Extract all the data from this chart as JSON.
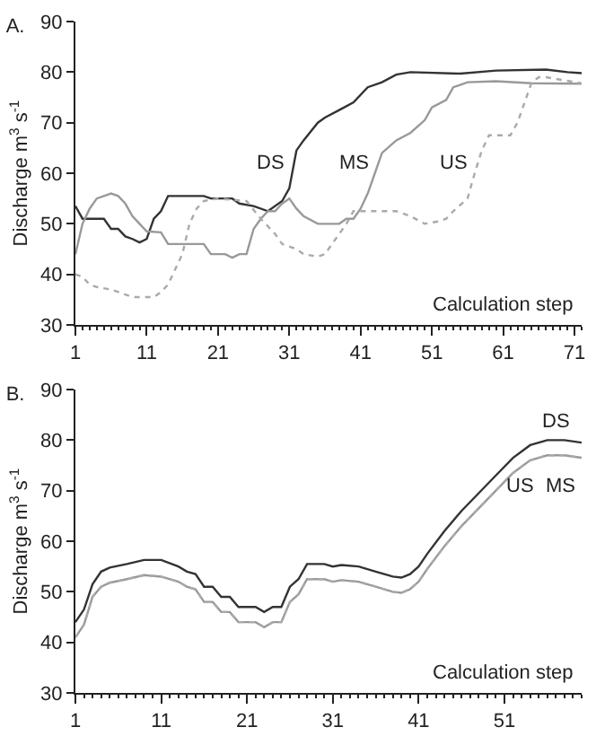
{
  "chart_data": [
    {
      "type": "line",
      "title": "A.",
      "xlabel": "Calculation step",
      "ylabel": "Discharge m$^{3}$ s$^{-1}$",
      "xlim": [
        1,
        72
      ],
      "xticks": [
        1,
        11,
        21,
        31,
        41,
        51,
        61,
        71
      ],
      "ylim": [
        30,
        90
      ],
      "yticks": [
        30,
        40,
        50,
        60,
        70,
        80,
        90
      ],
      "grid": false,
      "legend": false,
      "marker": "none",
      "series": [
        {
          "name": "DS",
          "color": "#333333",
          "line_style": "solid",
          "x": [
            1,
            2,
            5,
            6,
            7,
            8,
            9,
            10,
            11,
            12,
            13,
            14,
            19,
            20,
            23,
            24,
            26,
            28,
            30,
            31,
            32,
            33,
            35,
            36,
            38,
            40,
            42,
            44,
            46,
            48,
            55,
            60,
            67,
            70,
            72
          ],
          "values": [
            53.5,
            51,
            51,
            49,
            49,
            47.5,
            47,
            46.3,
            47,
            51,
            52.5,
            55.5,
            55.5,
            55,
            55,
            54,
            53.5,
            52.5,
            54.5,
            57,
            64.5,
            66.5,
            70,
            71,
            72.5,
            74,
            77,
            78,
            79.5,
            80,
            79.7,
            80.3,
            80.5,
            80,
            79.8
          ]
        },
        {
          "name": "MS",
          "color": "#999999",
          "line_style": "solid",
          "x": [
            1,
            2,
            3,
            4,
            6,
            7,
            8,
            9,
            10,
            11,
            13,
            14,
            19,
            20,
            22,
            23,
            24,
            25,
            26,
            27,
            28,
            29,
            30,
            31,
            32,
            33,
            35,
            38,
            39,
            40,
            41,
            42,
            43,
            44,
            46,
            48,
            50,
            51,
            53,
            54,
            56,
            60,
            65,
            72
          ],
          "values": [
            44,
            50,
            53,
            55,
            56,
            55.5,
            54,
            51.5,
            50,
            48.5,
            48.3,
            46,
            46,
            44,
            44,
            43.3,
            44,
            44,
            49,
            51,
            52.5,
            52.5,
            54,
            55,
            53,
            51.5,
            50,
            50,
            51,
            51,
            53,
            56,
            60,
            64,
            66.5,
            68,
            70.5,
            73,
            74.5,
            77,
            78,
            78.2,
            77.8,
            77.7
          ]
        },
        {
          "name": "US",
          "color": "#aaaaaa",
          "line_style": "dotted",
          "x": [
            1,
            2,
            3,
            4,
            6,
            8,
            9,
            12,
            13,
            14,
            16,
            17,
            18,
            19,
            21,
            25,
            27,
            29,
            30,
            32,
            33,
            35,
            36,
            38,
            39,
            40,
            46,
            48,
            50,
            52,
            53,
            54,
            56,
            57,
            58,
            59,
            62,
            63,
            64,
            65,
            66,
            67,
            69,
            72
          ],
          "values": [
            40,
            39.5,
            38,
            37.5,
            37,
            36,
            35.5,
            35.5,
            36.5,
            38,
            44,
            50,
            53,
            54.5,
            55,
            54.5,
            51,
            48,
            46,
            45,
            44,
            43.5,
            44,
            48,
            50,
            52.5,
            52.5,
            51.5,
            50,
            50.5,
            51,
            52.5,
            55,
            60,
            64.5,
            67.5,
            67.5,
            70,
            74,
            78,
            79,
            79,
            78.5,
            77.8
          ]
        }
      ]
    },
    {
      "type": "line",
      "title": "B.",
      "xlabel": "Calculation step",
      "ylabel": "Discharge m$^{3}$ s$^{-1}$",
      "xlim": [
        1,
        60
      ],
      "xticks": [
        1,
        11,
        21,
        31,
        41,
        51
      ],
      "ylim": [
        30,
        90
      ],
      "yticks": [
        30,
        40,
        50,
        60,
        70,
        80,
        90
      ],
      "grid": false,
      "legend": false,
      "marker": "none",
      "series": [
        {
          "name": "DS",
          "color": "#333333",
          "line_style": "solid",
          "x": [
            1,
            2,
            3,
            4,
            5,
            7,
            9,
            11,
            13,
            14,
            15,
            16,
            17,
            18,
            19,
            20,
            22,
            23,
            24,
            25,
            26,
            27,
            28,
            30,
            31,
            32,
            34,
            36,
            38,
            39,
            40,
            41,
            42,
            44,
            46,
            48,
            50,
            52,
            54,
            56,
            58,
            60
          ],
          "values": [
            44,
            46.5,
            51.5,
            54,
            54.8,
            55.5,
            56.3,
            56.3,
            55,
            54,
            53.5,
            51,
            51,
            49,
            49,
            47,
            47,
            46,
            47,
            47,
            51,
            52.5,
            55.5,
            55.5,
            55,
            55.3,
            55,
            54,
            53,
            52.8,
            53.5,
            55,
            57.5,
            62,
            66,
            69.5,
            73,
            76.5,
            79,
            80,
            80,
            79.5
          ]
        },
        {
          "name": "MS",
          "color": "#999999",
          "line_style": "solid",
          "x": [
            1,
            2,
            3,
            4,
            5,
            7,
            9,
            11,
            13,
            14,
            15,
            16,
            17,
            18,
            19,
            20,
            22,
            23,
            24,
            25,
            26,
            27,
            28,
            30,
            31,
            32,
            34,
            36,
            38,
            39,
            40,
            41,
            42,
            44,
            46,
            48,
            50,
            52,
            54,
            56,
            58,
            60
          ],
          "values": [
            41,
            43.5,
            49,
            51,
            51.8,
            52.5,
            53.3,
            53,
            52,
            51,
            50.5,
            48,
            48,
            46,
            46,
            44,
            44,
            43,
            44,
            44,
            48,
            49.5,
            52.5,
            52.5,
            52,
            52.3,
            52,
            51,
            50,
            49.8,
            50.5,
            52,
            54.5,
            59,
            63,
            66.5,
            70,
            73.5,
            76,
            77,
            77,
            76.5
          ]
        },
        {
          "name": "US",
          "color": "#aaaaaa",
          "line_style": "dotted",
          "x": [
            1,
            2,
            3,
            4,
            5,
            7,
            9,
            11,
            13,
            14,
            15,
            16,
            17,
            18,
            19,
            20,
            22,
            23,
            24,
            25,
            26,
            27,
            28,
            30,
            31,
            32,
            34,
            36,
            38,
            39,
            40,
            41,
            42,
            44,
            46,
            48,
            50,
            52,
            54,
            56,
            58,
            60
          ],
          "values": [
            41,
            43.5,
            49,
            51,
            51.8,
            52.5,
            53.3,
            53,
            52,
            51,
            50.5,
            48,
            48,
            46,
            46,
            44,
            44,
            43,
            44,
            44,
            48,
            49.5,
            52.5,
            52.5,
            52,
            52.3,
            52,
            51,
            50,
            49.8,
            50.5,
            52,
            54.5,
            59,
            63,
            66.5,
            70,
            73.5,
            76,
            77,
            77,
            76.5
          ]
        }
      ]
    }
  ]
}
